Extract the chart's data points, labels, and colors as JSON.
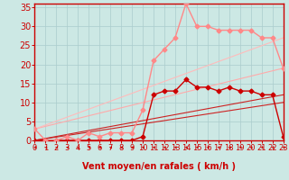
{
  "background_color": "#cce8e4",
  "grid_color": "#aacccc",
  "xlabel": "Vent moyen/en rafales ( km/h )",
  "xlim": [
    0,
    23
  ],
  "ylim": [
    0,
    36
  ],
  "yticks": [
    0,
    5,
    10,
    15,
    20,
    25,
    30,
    35
  ],
  "xticks": [
    0,
    1,
    2,
    3,
    4,
    5,
    6,
    7,
    8,
    9,
    10,
    11,
    12,
    13,
    14,
    15,
    16,
    17,
    18,
    19,
    20,
    21,
    22,
    23
  ],
  "series": [
    {
      "x": [
        0,
        1,
        2,
        3,
        4,
        5,
        6,
        7,
        8,
        9,
        10,
        11,
        12,
        13,
        14,
        15,
        16,
        17,
        18,
        19,
        20,
        21,
        22,
        23
      ],
      "y": [
        0,
        0,
        0,
        0,
        0,
        0,
        0,
        0,
        0,
        0,
        1,
        12,
        13,
        13,
        16,
        14,
        14,
        13,
        14,
        13,
        13,
        12,
        12,
        1
      ],
      "color": "#cc0000",
      "linewidth": 1.0,
      "marker": "D",
      "markersize": 2.5,
      "zorder": 5
    },
    {
      "x": [
        0,
        1,
        2,
        3,
        4,
        5,
        6,
        7,
        8,
        9,
        10,
        11,
        12,
        13,
        14,
        15,
        16,
        17,
        18,
        19,
        20,
        21,
        22,
        23
      ],
      "y": [
        3,
        0,
        0,
        1,
        0,
        2,
        1,
        2,
        2,
        2,
        8,
        21,
        24,
        27,
        36,
        30,
        30,
        29,
        29,
        29,
        29,
        27,
        27,
        19
      ],
      "color": "#ff8888",
      "linewidth": 1.0,
      "marker": "D",
      "markersize": 2.5,
      "zorder": 5
    },
    {
      "x": [
        0,
        23
      ],
      "y": [
        0,
        12
      ],
      "color": "#cc2222",
      "linewidth": 0.8,
      "marker": null,
      "markersize": 0,
      "zorder": 2
    },
    {
      "x": [
        0,
        23
      ],
      "y": [
        0,
        10
      ],
      "color": "#cc2222",
      "linewidth": 0.8,
      "marker": null,
      "markersize": 0,
      "zorder": 2
    },
    {
      "x": [
        0,
        23
      ],
      "y": [
        3,
        19
      ],
      "color": "#ffaaaa",
      "linewidth": 0.8,
      "marker": null,
      "markersize": 0,
      "zorder": 2
    },
    {
      "x": [
        0,
        23
      ],
      "y": [
        3,
        27
      ],
      "color": "#ffbbbb",
      "linewidth": 0.8,
      "marker": null,
      "markersize": 0,
      "zorder": 2
    }
  ],
  "arrow_color": "#cc0000",
  "axis_color": "#cc0000",
  "tick_color": "#cc0000",
  "label_color": "#cc0000",
  "xlabel_fontsize": 7,
  "ytick_fontsize": 7,
  "xtick_fontsize": 6
}
